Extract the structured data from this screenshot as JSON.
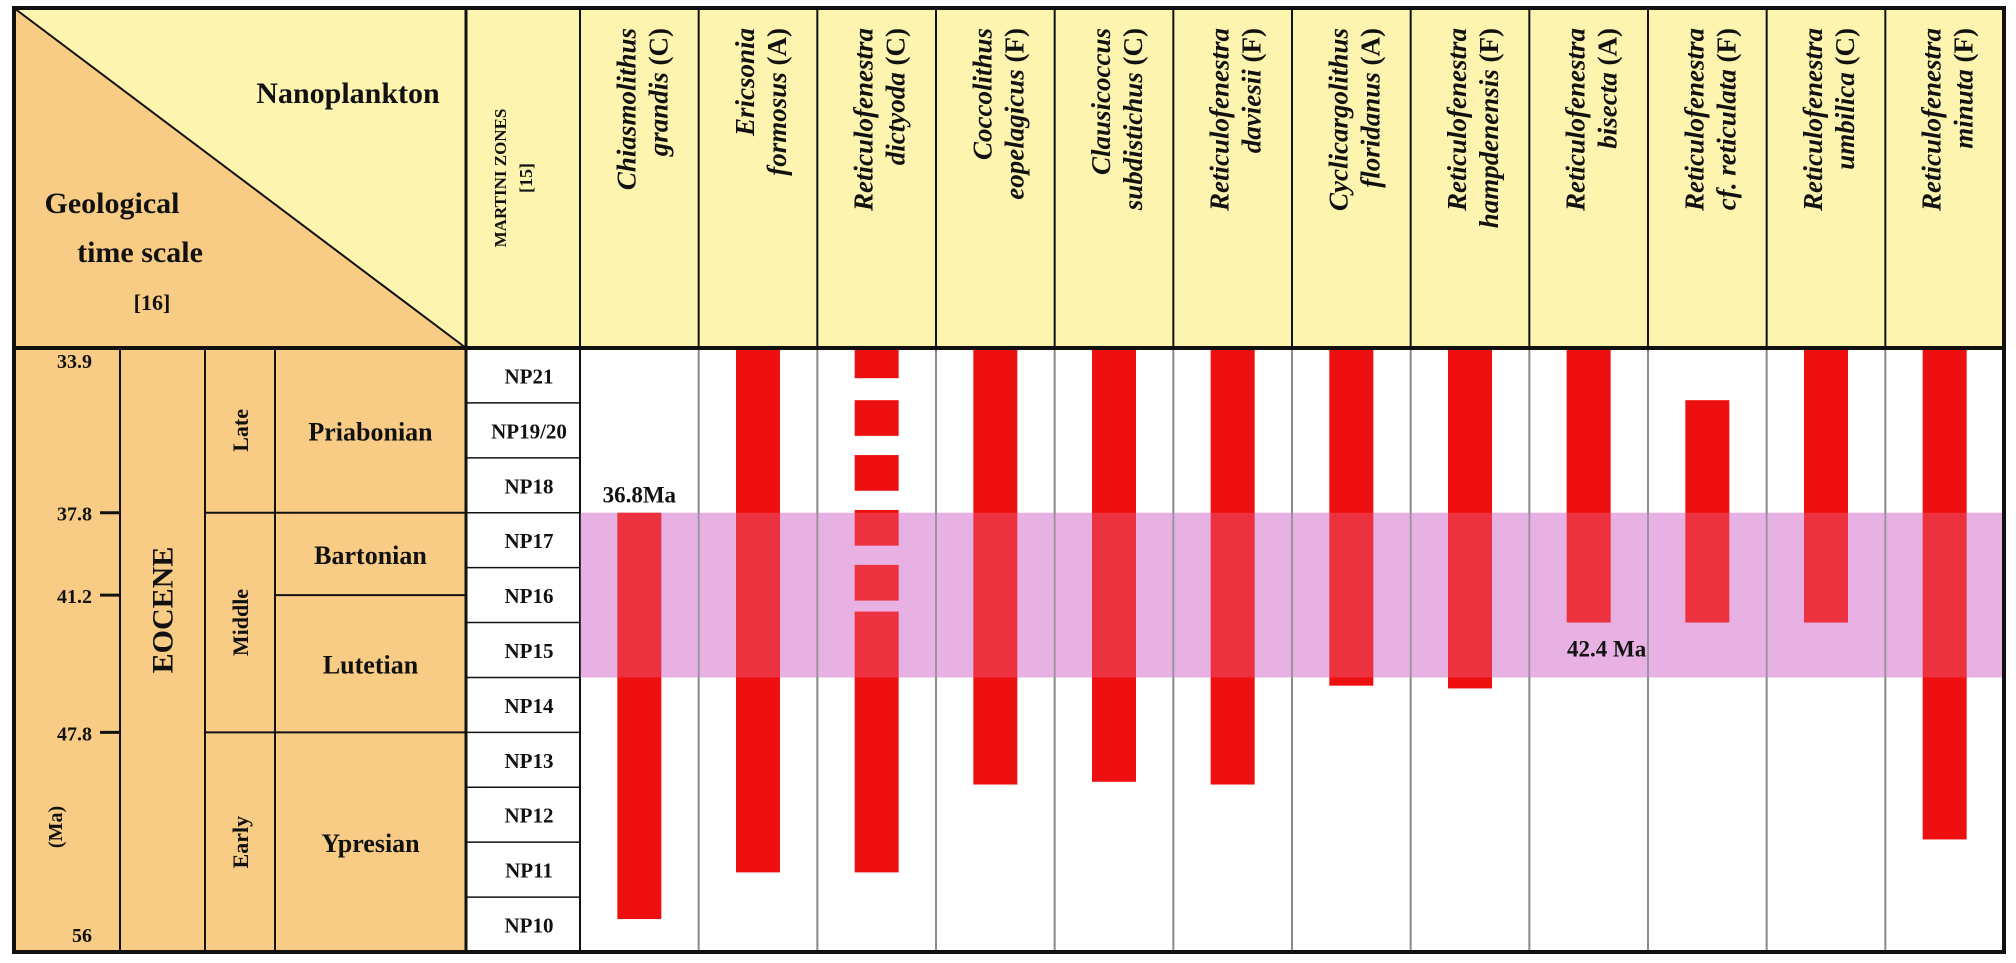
{
  "header": {
    "nanoplankton_label": "Nanoplankton",
    "time_scale_label_lines": [
      "Geological",
      "time scale"
    ],
    "time_scale_ref": "[16]",
    "zones_label": "MARTINI ZONES",
    "zones_ref": "[15]"
  },
  "time_axis": {
    "ticks": [
      {
        "label": "33.9",
        "ma": 33.9
      },
      {
        "label": "37.8",
        "ma": 37.8
      },
      {
        "label": "41.2",
        "ma": 41.2
      },
      {
        "label": "47.8",
        "ma": 47.8
      },
      {
        "label": "56",
        "ma": 56
      }
    ],
    "unit_label": "(Ma)"
  },
  "epoch": {
    "name": "EOCENE"
  },
  "subepochs": [
    {
      "label": "Late",
      "ma_start": 33.9,
      "ma_end": 37.8
    },
    {
      "label": "Middle",
      "ma_start": 37.8,
      "ma_end": 47.8
    },
    {
      "label": "Early",
      "ma_start": 47.8,
      "ma_end": 56
    }
  ],
  "stages": [
    {
      "label": "Priabonian",
      "ma_start": 33.9,
      "ma_end": 37.8
    },
    {
      "label": "Bartonian",
      "ma_start": 37.8,
      "ma_end": 41.2
    },
    {
      "label": "Lutetian",
      "ma_start": 41.2,
      "ma_end": 47.8
    },
    {
      "label": "Ypresian",
      "ma_start": 47.8,
      "ma_end": 56
    }
  ],
  "zones": [
    "NP21",
    "NP19/20",
    "NP18",
    "NP17",
    "NP16",
    "NP15",
    "NP14",
    "NP13",
    "NP12",
    "NP11",
    "NP10"
  ],
  "highlight": {
    "from_zone": 3,
    "to_zone": 5,
    "color": "#e7b3e3"
  },
  "colors": {
    "header_fill": "#fdf4b0",
    "scale_fill": "#f8cc84",
    "range_bar": "#ee0f10",
    "grid_line": "#8a8a8a",
    "border": "#111111"
  },
  "species": [
    {
      "name_lines": [
        "Chiasmolithus",
        "grandis"
      ],
      "abundance": "(C)",
      "range_zones": [
        3,
        10.4
      ],
      "top_label": "36.8Ma"
    },
    {
      "name_lines": [
        "Ericsonia",
        "formosus"
      ],
      "abundance": "(A)",
      "range_zones": [
        0,
        9.55
      ]
    },
    {
      "name_lines": [
        "Reticulofenestra",
        "dictyoda"
      ],
      "abundance": "(C)",
      "segments": [
        [
          0,
          0.55
        ],
        [
          0.95,
          1.6
        ],
        [
          1.95,
          2.6
        ],
        [
          2.95,
          3.6
        ],
        [
          3.95,
          4.6
        ],
        [
          4.8,
          9.55
        ]
      ]
    },
    {
      "name_lines": [
        "Coccolithus",
        "eopelagicus"
      ],
      "abundance": "(F)",
      "range_zones": [
        0,
        7.95
      ]
    },
    {
      "name_lines": [
        "Clausicoccus",
        "subdistichus"
      ],
      "abundance": "(C)",
      "range_zones": [
        0,
        7.9
      ]
    },
    {
      "name_lines": [
        "Reticulofenestra",
        "daviesii"
      ],
      "abundance": "(F)",
      "range_zones": [
        0,
        7.95
      ]
    },
    {
      "name_lines": [
        "Cyclicargolithus",
        "floridanus"
      ],
      "abundance": "(A)",
      "range_zones": [
        0,
        6.15
      ]
    },
    {
      "name_lines": [
        "Reticulofenestra",
        "hampdenensis"
      ],
      "abundance": "(F)",
      "range_zones": [
        0,
        6.2
      ]
    },
    {
      "name_lines": [
        "Reticulofenestra",
        "bisecta"
      ],
      "abundance": "(A)",
      "range_zones": [
        0,
        5
      ],
      "bottom_label": "42.4 Ma"
    },
    {
      "name_lines": [
        "Reticulofenestra",
        "cf. reticulata"
      ],
      "abundance": "(F)",
      "range_zones": [
        0.95,
        5
      ]
    },
    {
      "name_lines": [
        "Reticulofenestra",
        "umbilica"
      ],
      "abundance": "(C)",
      "range_zones": [
        0,
        5
      ]
    },
    {
      "name_lines": [
        "Reticulofenestra",
        "minuta"
      ],
      "abundance": "(F)",
      "range_zones": [
        0,
        8.95
      ]
    }
  ]
}
